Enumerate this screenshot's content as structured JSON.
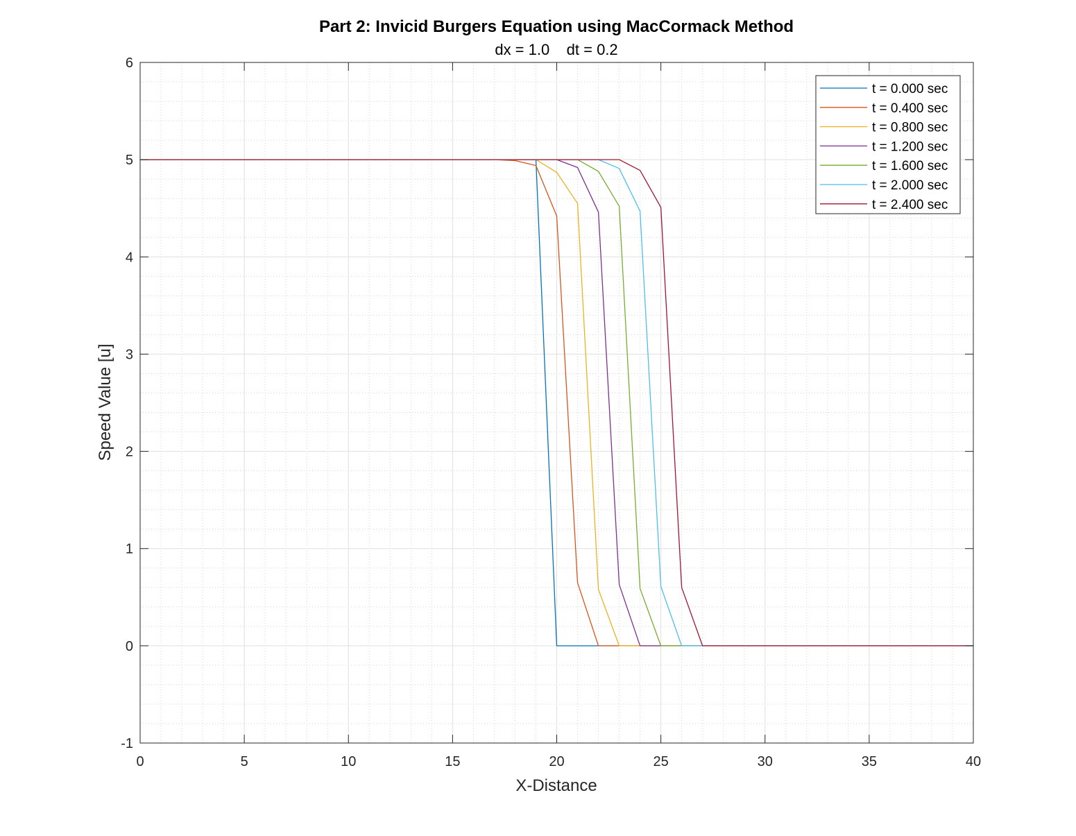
{
  "chart_data": {
    "type": "line",
    "title": "Part 2: Invicid Burgers Equation using MacCormack Method",
    "subtitle": "dx = 1.0    dt = 0.2",
    "xlabel": "X-Distance",
    "ylabel": "Speed Value [u]",
    "xlim": [
      0,
      40
    ],
    "ylim": [
      -1,
      6
    ],
    "xticks": [
      0,
      5,
      10,
      15,
      20,
      25,
      30,
      35,
      40
    ],
    "yticks": [
      -1,
      0,
      1,
      2,
      3,
      4,
      5,
      6
    ],
    "xtick_labels": [
      "0",
      "5",
      "10",
      "15",
      "20",
      "25",
      "30",
      "35",
      "40"
    ],
    "ytick_labels": [
      "-1",
      "0",
      "1",
      "2",
      "3",
      "4",
      "5",
      "6"
    ],
    "grid": true,
    "minor_grid": true,
    "legend_position": "top-right",
    "series": [
      {
        "name": "t = 0.000 sec",
        "color": "#0072BD",
        "x": [
          0,
          19,
          20,
          40
        ],
        "y": [
          5,
          5,
          0,
          0
        ]
      },
      {
        "name": "t = 0.400 sec",
        "color": "#D95319",
        "x": [
          0,
          17,
          18,
          19,
          20,
          21,
          22,
          40
        ],
        "y": [
          5,
          5,
          4.99,
          4.94,
          4.42,
          0.65,
          0,
          0
        ]
      },
      {
        "name": "t = 0.800 sec",
        "color": "#EDB120",
        "x": [
          0,
          19,
          20,
          21,
          22,
          23,
          40
        ],
        "y": [
          5,
          5,
          4.87,
          4.55,
          0.58,
          0,
          0
        ]
      },
      {
        "name": "t = 1.200 sec",
        "color": "#7E2F8E",
        "x": [
          0,
          20,
          21,
          22,
          23,
          24,
          40
        ],
        "y": [
          5,
          5,
          4.92,
          4.46,
          0.63,
          0,
          0
        ]
      },
      {
        "name": "t = 1.600 sec",
        "color": "#77AC30",
        "x": [
          0,
          21,
          22,
          23,
          24,
          25,
          40
        ],
        "y": [
          5,
          5,
          4.88,
          4.52,
          0.59,
          0,
          0
        ]
      },
      {
        "name": "t = 2.000 sec",
        "color": "#4DBEEE",
        "x": [
          0,
          22,
          23,
          24,
          25,
          26,
          40
        ],
        "y": [
          5,
          5,
          4.91,
          4.47,
          0.61,
          0,
          0
        ]
      },
      {
        "name": "t = 2.400 sec",
        "color": "#A2142F",
        "x": [
          0,
          23,
          24,
          25,
          26,
          27,
          40
        ],
        "y": [
          5,
          5,
          4.89,
          4.51,
          0.6,
          0,
          0
        ]
      }
    ]
  }
}
